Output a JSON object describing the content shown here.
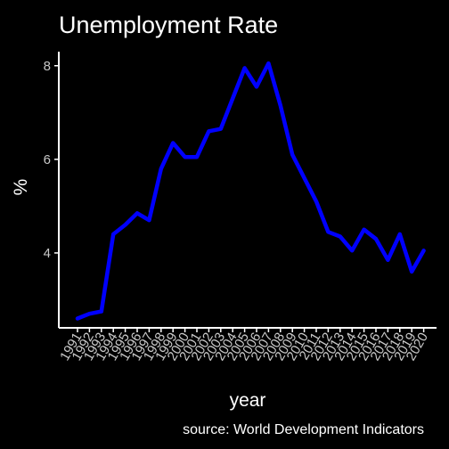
{
  "chart_data": {
    "type": "line",
    "title": "Unemployment Rate",
    "xlabel": "year",
    "ylabel": "%",
    "caption": "source: World Development Indicators",
    "ylim": [
      2.4,
      8.3
    ],
    "yticks": [
      4,
      6,
      8
    ],
    "grid": false,
    "legend": "none",
    "series": [
      {
        "color": "#0000ff",
        "x": [
          1991,
          1992,
          1993,
          1994,
          1995,
          1996,
          1997,
          1998,
          1999,
          2000,
          2001,
          2002,
          2003,
          2004,
          2005,
          2006,
          2007,
          2008,
          2009,
          2010,
          2011,
          2012,
          2013,
          2014,
          2015,
          2016,
          2017,
          2018,
          2019,
          2020
        ],
        "values": [
          2.6,
          2.7,
          2.75,
          4.4,
          4.6,
          4.85,
          4.7,
          5.8,
          6.35,
          6.05,
          6.05,
          6.6,
          6.65,
          7.3,
          7.95,
          7.55,
          8.05,
          7.15,
          6.1,
          5.6,
          5.1,
          4.45,
          4.35,
          4.05,
          4.5,
          4.3,
          3.85,
          4.4,
          3.6,
          4.05
        ]
      }
    ]
  }
}
